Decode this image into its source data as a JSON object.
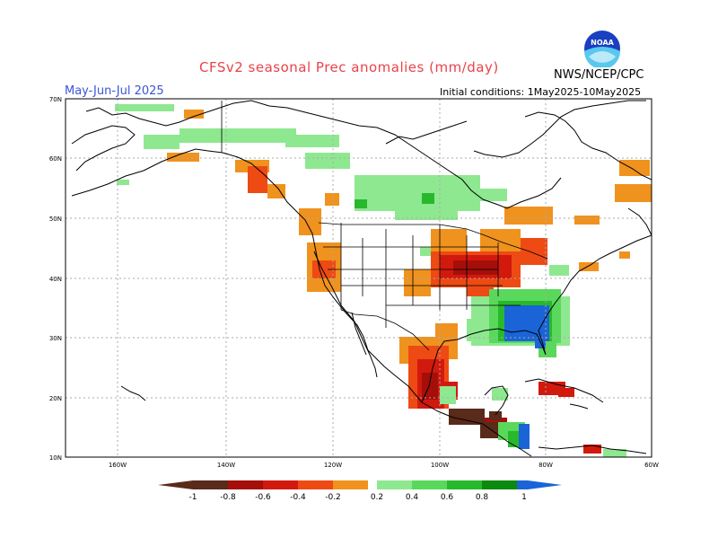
{
  "header": {
    "title": "CFSv2 seasonal Prec anomalies (mm/day)",
    "season": "May-Jun-Jul 2025",
    "initial_conditions": "Initial conditions: 1May2025-10May2025",
    "agency": "NWS/NCEP/CPC",
    "logo_text": "NOAA",
    "logo_icon": "noaa-logo-icon"
  },
  "axes": {
    "lat_labels": [
      "70N",
      "60N",
      "50N",
      "40N",
      "30N",
      "20N",
      "10N"
    ],
    "lon_labels": [
      "160W",
      "140W",
      "120W",
      "100W",
      "80W",
      "60W"
    ]
  },
  "legend": {
    "labels": [
      "-1",
      "-0.8",
      "-0.6",
      "-0.4",
      "-0.2",
      "0.2",
      "0.4",
      "0.6",
      "0.8",
      "1"
    ],
    "dry_colors": [
      "#5a2a1a",
      "#a50f0a",
      "#d2190e",
      "#ee4a14",
      "#f0921e"
    ],
    "wet_colors": [
      "#8ee890",
      "#5ad85c",
      "#28b82c",
      "#0a8a0e",
      "#1a64d8"
    ],
    "low_end_color": "#5a2a1a",
    "high_end_color": "#1a64d8"
  }
}
